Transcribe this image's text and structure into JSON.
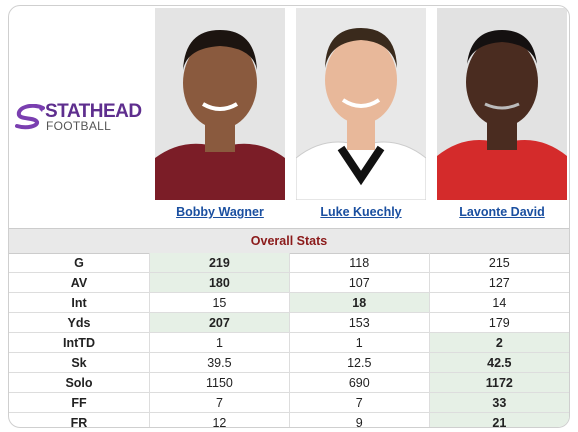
{
  "brand": {
    "top": "STATHEAD",
    "bottom": "FOOTBALL"
  },
  "players": [
    {
      "name": "Bobby Wagner",
      "jersey": "#7b1d27",
      "skin": "#8a5a3e",
      "hair": "#1c1410"
    },
    {
      "name": "Luke Kuechly",
      "jersey": "#ffffff",
      "skin": "#e8b89a",
      "hair": "#3a2a1c"
    },
    {
      "name": "Lavonte David",
      "jersey": "#d42b2b",
      "skin": "#4a2c20",
      "hair": "#141010"
    }
  ],
  "section_title": "Overall Stats",
  "rows": [
    {
      "label": "G",
      "values": [
        "219",
        "118",
        "215"
      ],
      "best": 0
    },
    {
      "label": "AV",
      "values": [
        "180",
        "107",
        "127"
      ],
      "best": 0
    },
    {
      "label": "Int",
      "values": [
        "15",
        "18",
        "14"
      ],
      "best": 1
    },
    {
      "label": "Yds",
      "values": [
        "207",
        "153",
        "179"
      ],
      "best": 0
    },
    {
      "label": "IntTD",
      "values": [
        "1",
        "1",
        "2"
      ],
      "best": 2
    },
    {
      "label": "Sk",
      "values": [
        "39.5",
        "12.5",
        "42.5"
      ],
      "best": 2
    },
    {
      "label": "Solo",
      "values": [
        "1150",
        "690",
        "1172"
      ],
      "best": 2
    },
    {
      "label": "FF",
      "values": [
        "7",
        "7",
        "33"
      ],
      "best": 2
    },
    {
      "label": "FR",
      "values": [
        "12",
        "9",
        "21"
      ],
      "best": 2
    }
  ],
  "colors": {
    "highlight": "#e6f0e6",
    "link": "#1a4fa0",
    "section_text": "#8b1a1a",
    "brand": "#5e2e8e"
  }
}
